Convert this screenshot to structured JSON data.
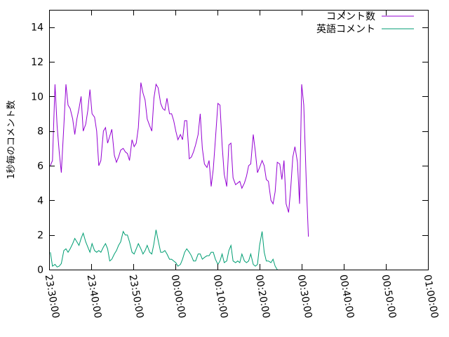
{
  "chart_data": {
    "type": "line",
    "ylabel": "1秒毎のコメント数",
    "ylim": [
      0,
      15
    ],
    "yticks": [
      0,
      2,
      4,
      6,
      8,
      10,
      12,
      14
    ],
    "xlim_minutes": [
      0,
      90
    ],
    "xticks": [
      {
        "minute": 0,
        "label": "23:30:00"
      },
      {
        "minute": 10,
        "label": "23:40:00"
      },
      {
        "minute": 20,
        "label": "23:50:00"
      },
      {
        "minute": 30,
        "label": "00:00:00"
      },
      {
        "minute": 40,
        "label": "00:10:00"
      },
      {
        "minute": 50,
        "label": "00:20:00"
      },
      {
        "minute": 60,
        "label": "00:30:00"
      },
      {
        "minute": 70,
        "label": "00:40:00"
      },
      {
        "minute": 80,
        "label": "00:50:00"
      },
      {
        "minute": 90,
        "label": "01:00:00"
      }
    ],
    "legend_position": "top-right",
    "grid": false,
    "series": [
      {
        "name": "コメント数",
        "color": "#9400d3",
        "points": [
          [
            0.3,
            6.0
          ],
          [
            0.8,
            6.3
          ],
          [
            1.4,
            10.7
          ],
          [
            1.9,
            8.3
          ],
          [
            2.4,
            6.8
          ],
          [
            2.9,
            5.6
          ],
          [
            3.5,
            8.3
          ],
          [
            4.0,
            10.7
          ],
          [
            4.5,
            9.5
          ],
          [
            5.0,
            9.3
          ],
          [
            5.6,
            8.7
          ],
          [
            6.1,
            7.8
          ],
          [
            6.6,
            8.7
          ],
          [
            7.1,
            9.3
          ],
          [
            7.6,
            10.0
          ],
          [
            8.1,
            8.0
          ],
          [
            8.7,
            8.4
          ],
          [
            9.2,
            9.2
          ],
          [
            9.7,
            10.4
          ],
          [
            10.2,
            9.0
          ],
          [
            10.8,
            8.8
          ],
          [
            11.3,
            8.0
          ],
          [
            11.8,
            6.0
          ],
          [
            12.3,
            6.3
          ],
          [
            12.9,
            8.0
          ],
          [
            13.4,
            8.2
          ],
          [
            13.9,
            7.3
          ],
          [
            14.4,
            7.7
          ],
          [
            14.9,
            8.1
          ],
          [
            15.5,
            6.6
          ],
          [
            16.0,
            6.2
          ],
          [
            16.5,
            6.5
          ],
          [
            17.0,
            6.9
          ],
          [
            17.6,
            7.0
          ],
          [
            18.1,
            6.8
          ],
          [
            18.6,
            6.7
          ],
          [
            19.1,
            6.3
          ],
          [
            19.7,
            7.5
          ],
          [
            20.2,
            7.1
          ],
          [
            20.7,
            7.3
          ],
          [
            21.2,
            8.2
          ],
          [
            21.8,
            10.8
          ],
          [
            22.3,
            10.2
          ],
          [
            22.8,
            9.8
          ],
          [
            23.3,
            8.7
          ],
          [
            23.9,
            8.3
          ],
          [
            24.4,
            8.0
          ],
          [
            24.9,
            9.9
          ],
          [
            25.4,
            10.7
          ],
          [
            25.9,
            10.5
          ],
          [
            26.5,
            9.6
          ],
          [
            27.0,
            9.3
          ],
          [
            27.5,
            9.2
          ],
          [
            28.0,
            9.9
          ],
          [
            28.6,
            9.0
          ],
          [
            29.1,
            9.0
          ],
          [
            29.6,
            8.6
          ],
          [
            30.1,
            8.0
          ],
          [
            30.6,
            7.5
          ],
          [
            31.2,
            7.8
          ],
          [
            31.7,
            7.5
          ],
          [
            32.2,
            8.6
          ],
          [
            32.7,
            8.6
          ],
          [
            33.3,
            6.4
          ],
          [
            33.8,
            6.5
          ],
          [
            34.3,
            6.8
          ],
          [
            34.8,
            7.2
          ],
          [
            35.4,
            7.8
          ],
          [
            35.9,
            9.0
          ],
          [
            36.4,
            7.0
          ],
          [
            36.9,
            6.1
          ],
          [
            37.5,
            5.9
          ],
          [
            38.0,
            6.3
          ],
          [
            38.5,
            4.8
          ],
          [
            39.0,
            5.8
          ],
          [
            39.5,
            7.5
          ],
          [
            40.1,
            9.6
          ],
          [
            40.6,
            9.5
          ],
          [
            41.1,
            7.2
          ],
          [
            41.6,
            5.5
          ],
          [
            42.2,
            4.8
          ],
          [
            42.7,
            7.2
          ],
          [
            43.2,
            7.3
          ],
          [
            43.7,
            5.3
          ],
          [
            44.3,
            4.9
          ],
          [
            44.8,
            5.0
          ],
          [
            45.3,
            5.1
          ],
          [
            45.8,
            4.7
          ],
          [
            46.4,
            5.0
          ],
          [
            46.9,
            5.4
          ],
          [
            47.4,
            6.0
          ],
          [
            47.9,
            6.1
          ],
          [
            48.5,
            7.8
          ],
          [
            49.0,
            6.8
          ],
          [
            49.5,
            5.6
          ],
          [
            50.0,
            5.9
          ],
          [
            50.6,
            6.3
          ],
          [
            51.1,
            6.0
          ],
          [
            51.6,
            5.2
          ],
          [
            52.1,
            5.1
          ],
          [
            52.7,
            4.0
          ],
          [
            53.2,
            3.8
          ],
          [
            53.7,
            4.5
          ],
          [
            54.2,
            6.2
          ],
          [
            54.8,
            6.1
          ],
          [
            55.3,
            5.2
          ],
          [
            55.8,
            6.3
          ],
          [
            56.3,
            3.8
          ],
          [
            56.9,
            3.3
          ],
          [
            57.4,
            4.7
          ],
          [
            57.9,
            6.5
          ],
          [
            58.4,
            7.1
          ],
          [
            59.0,
            6.2
          ],
          [
            59.5,
            3.8
          ],
          [
            60.0,
            10.7
          ],
          [
            60.5,
            9.5
          ],
          [
            61.1,
            5.0
          ],
          [
            61.6,
            1.9
          ]
        ]
      },
      {
        "name": "英語コメント",
        "color": "#009e73",
        "points": [
          [
            0.3,
            1.0
          ],
          [
            0.8,
            0.2
          ],
          [
            1.4,
            0.3
          ],
          [
            1.9,
            0.15
          ],
          [
            2.4,
            0.2
          ],
          [
            2.9,
            0.35
          ],
          [
            3.5,
            1.1
          ],
          [
            4.0,
            1.2
          ],
          [
            4.5,
            1.0
          ],
          [
            5.0,
            1.2
          ],
          [
            5.6,
            1.5
          ],
          [
            6.1,
            1.8
          ],
          [
            6.6,
            1.6
          ],
          [
            7.1,
            1.4
          ],
          [
            7.6,
            1.8
          ],
          [
            8.1,
            2.1
          ],
          [
            8.7,
            1.6
          ],
          [
            9.2,
            1.3
          ],
          [
            9.7,
            1.0
          ],
          [
            10.2,
            1.5
          ],
          [
            10.8,
            1.1
          ],
          [
            11.3,
            1.0
          ],
          [
            11.8,
            1.1
          ],
          [
            12.3,
            1.0
          ],
          [
            12.9,
            1.3
          ],
          [
            13.4,
            1.5
          ],
          [
            13.9,
            1.2
          ],
          [
            14.4,
            0.5
          ],
          [
            14.9,
            0.6
          ],
          [
            15.5,
            0.9
          ],
          [
            16.0,
            1.1
          ],
          [
            16.5,
            1.4
          ],
          [
            17.0,
            1.6
          ],
          [
            17.6,
            2.2
          ],
          [
            18.1,
            2.0
          ],
          [
            18.6,
            2.0
          ],
          [
            19.1,
            1.6
          ],
          [
            19.7,
            1.0
          ],
          [
            20.2,
            0.9
          ],
          [
            20.7,
            1.2
          ],
          [
            21.2,
            1.5
          ],
          [
            21.8,
            1.2
          ],
          [
            22.3,
            0.9
          ],
          [
            22.8,
            1.1
          ],
          [
            23.3,
            1.4
          ],
          [
            23.9,
            1.0
          ],
          [
            24.4,
            0.9
          ],
          [
            24.9,
            1.5
          ],
          [
            25.4,
            2.3
          ],
          [
            25.9,
            1.7
          ],
          [
            26.5,
            1.0
          ],
          [
            27.0,
            1.0
          ],
          [
            27.5,
            1.1
          ],
          [
            28.0,
            0.9
          ],
          [
            28.6,
            0.6
          ],
          [
            29.1,
            0.6
          ],
          [
            29.6,
            0.5
          ],
          [
            30.1,
            0.4
          ],
          [
            30.6,
            0.2
          ],
          [
            31.2,
            0.3
          ],
          [
            31.7,
            0.6
          ],
          [
            32.2,
            1.0
          ],
          [
            32.7,
            1.2
          ],
          [
            33.3,
            1.0
          ],
          [
            33.8,
            0.8
          ],
          [
            34.3,
            0.5
          ],
          [
            34.8,
            0.5
          ],
          [
            35.4,
            0.9
          ],
          [
            35.9,
            0.9
          ],
          [
            36.4,
            0.6
          ],
          [
            36.9,
            0.7
          ],
          [
            37.5,
            0.8
          ],
          [
            38.0,
            0.8
          ],
          [
            38.5,
            1.0
          ],
          [
            39.0,
            1.0
          ],
          [
            39.5,
            0.6
          ],
          [
            40.1,
            0.3
          ],
          [
            40.6,
            0.5
          ],
          [
            41.1,
            0.9
          ],
          [
            41.6,
            0.4
          ],
          [
            42.2,
            0.5
          ],
          [
            42.7,
            1.1
          ],
          [
            43.2,
            1.4
          ],
          [
            43.7,
            0.5
          ],
          [
            44.3,
            0.4
          ],
          [
            44.8,
            0.5
          ],
          [
            45.3,
            0.4
          ],
          [
            45.8,
            0.9
          ],
          [
            46.4,
            0.5
          ],
          [
            46.9,
            0.4
          ],
          [
            47.4,
            0.5
          ],
          [
            47.9,
            0.9
          ],
          [
            48.5,
            0.3
          ],
          [
            49.0,
            0.2
          ],
          [
            49.5,
            0.3
          ],
          [
            50.0,
            1.4
          ],
          [
            50.6,
            2.2
          ],
          [
            51.1,
            1.0
          ],
          [
            51.6,
            0.5
          ],
          [
            52.1,
            0.5
          ],
          [
            52.7,
            0.4
          ],
          [
            53.2,
            0.6
          ],
          [
            53.7,
            0.2
          ],
          [
            54.2,
            0.0
          ]
        ]
      }
    ]
  }
}
